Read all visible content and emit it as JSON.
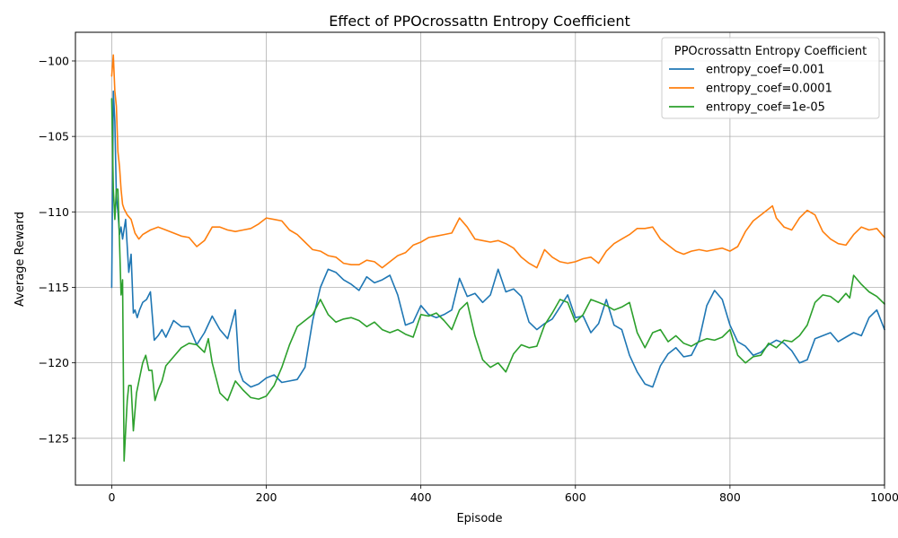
{
  "chart_data": {
    "type": "line",
    "title": "Effect of PPOcrossattn Entropy Coefficient",
    "xlabel": "Episode",
    "ylabel": "Average Reward",
    "xlim": [
      -47,
      1000
    ],
    "ylim": [
      -128.1,
      -98.1
    ],
    "xticks": [
      0,
      200,
      400,
      600,
      800,
      1000
    ],
    "yticks": [
      -125,
      -120,
      -115,
      -110,
      -105,
      -100
    ],
    "xtick_labels": [
      "0",
      "200",
      "400",
      "600",
      "800",
      "1000"
    ],
    "ytick_labels": [
      "−125",
      "−120",
      "−115",
      "−110",
      "−105",
      "−100"
    ],
    "grid": true,
    "legend": {
      "title": "PPOcrossattn Entropy Coefficient",
      "placement": "top-right"
    },
    "series": [
      {
        "name": "entropy_coef=0.001",
        "color": "#1f77b4",
        "x": [
          0,
          2,
          4,
          6,
          8,
          10,
          12,
          14,
          18,
          22,
          25,
          28,
          30,
          33,
          36,
          40,
          45,
          50,
          55,
          60,
          65,
          70,
          80,
          90,
          100,
          110,
          120,
          130,
          140,
          150,
          160,
          165,
          170,
          180,
          190,
          200,
          210,
          220,
          230,
          240,
          250,
          260,
          270,
          280,
          290,
          300,
          310,
          320,
          330,
          340,
          350,
          360,
          370,
          380,
          390,
          400,
          410,
          420,
          430,
          440,
          450,
          460,
          470,
          480,
          490,
          500,
          510,
          520,
          530,
          540,
          550,
          560,
          570,
          580,
          590,
          600,
          610,
          620,
          630,
          640,
          650,
          660,
          670,
          680,
          690,
          700,
          710,
          720,
          730,
          740,
          750,
          760,
          770,
          780,
          790,
          800,
          810,
          820,
          830,
          840,
          850,
          860,
          870,
          880,
          890,
          900,
          910,
          920,
          930,
          940,
          950,
          960,
          970,
          980,
          990,
          1000
        ],
        "values": [
          -115,
          -102,
          -104,
          -109,
          -110,
          -111.5,
          -111,
          -111.8,
          -110.5,
          -114,
          -112.8,
          -116.7,
          -116.5,
          -117,
          -116.5,
          -116,
          -115.8,
          -115.3,
          -118.5,
          -118.2,
          -117.8,
          -118.3,
          -117.2,
          -117.6,
          -117.6,
          -118.8,
          -118.0,
          -116.9,
          -117.8,
          -118.4,
          -116.5,
          -120.5,
          -121.2,
          -121.6,
          -121.4,
          -121.0,
          -120.8,
          -121.3,
          -121.2,
          -121.1,
          -120.3,
          -117.2,
          -115.0,
          -113.8,
          -114.0,
          -114.5,
          -114.8,
          -115.2,
          -114.3,
          -114.7,
          -114.5,
          -114.2,
          -115.5,
          -117.5,
          -117.3,
          -116.2,
          -116.8,
          -117.0,
          -116.8,
          -116.5,
          -114.4,
          -115.6,
          -115.4,
          -116.0,
          -115.5,
          -113.8,
          -115.3,
          -115.1,
          -115.6,
          -117.3,
          -117.8,
          -117.4,
          -117.1,
          -116.3,
          -115.5,
          -117.0,
          -116.9,
          -118.0,
          -117.4,
          -115.8,
          -117.5,
          -117.8,
          -119.5,
          -120.6,
          -121.4,
          -121.6,
          -120.2,
          -119.4,
          -119.0,
          -119.6,
          -119.5,
          -118.5,
          -116.2,
          -115.2,
          -115.8,
          -117.5,
          -118.6,
          -118.9,
          -119.5,
          -119.3,
          -118.8,
          -118.5,
          -118.7,
          -119.2,
          -120.0,
          -119.8,
          -118.4,
          -118.2,
          -118.0,
          -118.6,
          -118.3,
          -118.0,
          -118.2,
          -117.0,
          -116.5,
          -117.8
        ]
      },
      {
        "name": "entropy_coef=0.0001",
        "color": "#ff7f0e",
        "x": [
          0,
          2,
          4,
          6,
          8,
          10,
          12,
          14,
          16,
          20,
          25,
          30,
          35,
          40,
          50,
          60,
          70,
          80,
          90,
          100,
          110,
          120,
          130,
          140,
          150,
          160,
          170,
          180,
          190,
          200,
          210,
          220,
          230,
          240,
          250,
          260,
          270,
          280,
          290,
          300,
          310,
          320,
          330,
          340,
          350,
          360,
          370,
          380,
          390,
          400,
          410,
          420,
          430,
          440,
          450,
          460,
          470,
          480,
          490,
          500,
          510,
          520,
          530,
          540,
          550,
          560,
          570,
          580,
          590,
          600,
          610,
          620,
          630,
          640,
          650,
          660,
          670,
          680,
          690,
          700,
          710,
          720,
          730,
          740,
          750,
          760,
          770,
          780,
          790,
          800,
          810,
          820,
          830,
          840,
          850,
          855,
          860,
          870,
          880,
          890,
          900,
          910,
          920,
          930,
          940,
          950,
          960,
          970,
          980,
          990,
          1000
        ],
        "values": [
          -101,
          -99.6,
          -102,
          -103,
          -106,
          -107,
          -108.5,
          -109.5,
          -109.8,
          -110.2,
          -110.5,
          -111.4,
          -111.8,
          -111.5,
          -111.2,
          -111.0,
          -111.2,
          -111.4,
          -111.6,
          -111.7,
          -112.3,
          -111.9,
          -111.0,
          -111.0,
          -111.2,
          -111.3,
          -111.2,
          -111.1,
          -110.8,
          -110.4,
          -110.5,
          -110.6,
          -111.2,
          -111.5,
          -112.0,
          -112.5,
          -112.6,
          -112.9,
          -113.0,
          -113.4,
          -113.5,
          -113.5,
          -113.2,
          -113.3,
          -113.7,
          -113.3,
          -112.9,
          -112.7,
          -112.2,
          -112.0,
          -111.7,
          -111.6,
          -111.5,
          -111.4,
          -110.4,
          -111.0,
          -111.8,
          -111.9,
          -112.0,
          -111.9,
          -112.1,
          -112.4,
          -113.0,
          -113.4,
          -113.7,
          -112.5,
          -113.0,
          -113.3,
          -113.4,
          -113.3,
          -113.1,
          -113.0,
          -113.4,
          -112.6,
          -112.1,
          -111.8,
          -111.5,
          -111.1,
          -111.1,
          -111.0,
          -111.8,
          -112.2,
          -112.6,
          -112.8,
          -112.6,
          -112.5,
          -112.6,
          -112.5,
          -112.4,
          -112.6,
          -112.3,
          -111.3,
          -110.6,
          -110.2,
          -109.8,
          -109.6,
          -110.4,
          -111.0,
          -111.2,
          -110.4,
          -109.9,
          -110.2,
          -111.3,
          -111.8,
          -112.1,
          -112.2,
          -111.5,
          -111.0,
          -111.2,
          -111.1,
          -111.7
        ]
      },
      {
        "name": "entropy_coef=1e-05",
        "color": "#2ca02c",
        "x": [
          0,
          2,
          4,
          6,
          8,
          10,
          12,
          14,
          16,
          18,
          20,
          22,
          25,
          28,
          32,
          36,
          40,
          44,
          48,
          52,
          56,
          60,
          65,
          70,
          80,
          90,
          100,
          110,
          120,
          125,
          130,
          140,
          150,
          160,
          170,
          180,
          190,
          200,
          210,
          220,
          230,
          240,
          250,
          260,
          270,
          280,
          290,
          300,
          310,
          320,
          330,
          340,
          350,
          360,
          370,
          380,
          390,
          400,
          410,
          420,
          430,
          440,
          450,
          460,
          470,
          480,
          490,
          500,
          510,
          520,
          530,
          540,
          550,
          560,
          570,
          580,
          590,
          600,
          610,
          620,
          630,
          640,
          650,
          660,
          670,
          680,
          690,
          700,
          710,
          720,
          730,
          740,
          750,
          760,
          770,
          780,
          790,
          800,
          810,
          820,
          830,
          840,
          850,
          860,
          870,
          880,
          890,
          900,
          910,
          920,
          930,
          940,
          950,
          955,
          960,
          970,
          980,
          990,
          1000
        ],
        "values": [
          -102.5,
          -108.5,
          -110.5,
          -108.5,
          -108.5,
          -112,
          -115.5,
          -114.5,
          -126.5,
          -124.5,
          -122.5,
          -121.5,
          -121.5,
          -124.5,
          -122.0,
          -121.0,
          -120.0,
          -119.5,
          -120.5,
          -120.5,
          -122.5,
          -121.8,
          -121.2,
          -120.2,
          -119.6,
          -119.0,
          -118.7,
          -118.8,
          -119.3,
          -118.4,
          -120.0,
          -122.0,
          -122.5,
          -121.2,
          -121.8,
          -122.3,
          -122.4,
          -122.2,
          -121.5,
          -120.3,
          -118.8,
          -117.6,
          -117.2,
          -116.8,
          -115.8,
          -116.8,
          -117.3,
          -117.1,
          -117.0,
          -117.2,
          -117.6,
          -117.3,
          -117.8,
          -118.0,
          -117.8,
          -118.1,
          -118.3,
          -116.8,
          -116.9,
          -116.7,
          -117.2,
          -117.8,
          -116.5,
          -116.0,
          -118.2,
          -119.8,
          -120.3,
          -120.0,
          -120.6,
          -119.4,
          -118.8,
          -119.0,
          -118.9,
          -117.5,
          -116.7,
          -115.8,
          -116.0,
          -117.3,
          -116.8,
          -115.8,
          -116.0,
          -116.2,
          -116.5,
          -116.3,
          -116.0,
          -118.0,
          -119.0,
          -118.0,
          -117.8,
          -118.6,
          -118.2,
          -118.7,
          -118.9,
          -118.6,
          -118.4,
          -118.5,
          -118.3,
          -117.8,
          -119.5,
          -120.0,
          -119.6,
          -119.5,
          -118.7,
          -119.0,
          -118.5,
          -118.6,
          -118.2,
          -117.5,
          -116.0,
          -115.5,
          -115.6,
          -116.0,
          -115.4,
          -115.7,
          -114.2,
          -114.8,
          -115.3,
          -115.6,
          -116.1
        ]
      }
    ]
  }
}
